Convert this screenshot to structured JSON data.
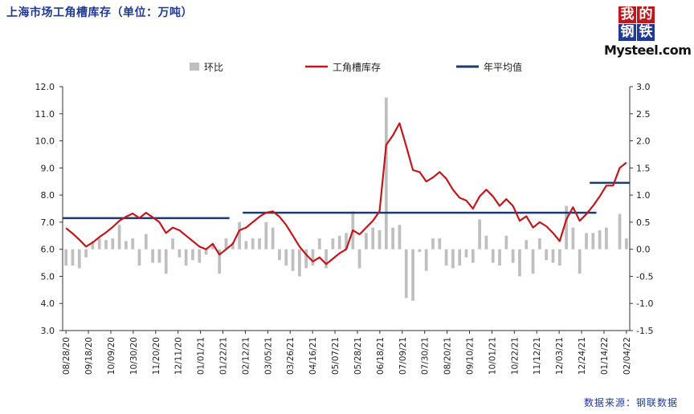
{
  "header": {
    "title": "上海市场工角槽库存（单位：万吨）",
    "logo_cn": [
      "我",
      "的",
      "钢",
      "铁"
    ],
    "logo_en": "Mysteel.com"
  },
  "footer": {
    "source": "数据来源：钢联数据"
  },
  "colors": {
    "bar": "#bfbfbf",
    "inventory": "#c0171c",
    "average": "#1f3a6e"
  },
  "chart_data": {
    "type": "bar",
    "title": "上海市场工角槽库存（单位：万吨）",
    "legend": {
      "placement": "top",
      "entries": [
        "环比",
        "工角槽库存",
        "年平均值"
      ]
    },
    "y_left": {
      "min": 3.0,
      "max": 12.0,
      "step": 1.0,
      "ticks": [
        "3.0",
        "4.0",
        "5.0",
        "6.0",
        "7.0",
        "8.0",
        "9.0",
        "10.0",
        "11.0",
        "12.0"
      ]
    },
    "y_right": {
      "min": -1.5,
      "max": 3.0,
      "step": 0.5,
      "ticks": [
        "-1.5",
        "-1.0",
        "-0.5",
        "0.0",
        "0.5",
        "1.0",
        "1.5",
        "2.0",
        "2.5",
        "3.0"
      ]
    },
    "x_tick_labels": [
      "08/28/20",
      "09/18/20",
      "10/09/20",
      "10/30/20",
      "11/20/20",
      "12/11/20",
      "01/01/21",
      "01/22/21",
      "02/12/21",
      "03/05/21",
      "03/26/21",
      "04/16/21",
      "05/07/21",
      "05/28/21",
      "06/18/21",
      "07/09/21",
      "07/30/21",
      "08/20/21",
      "09/10/21",
      "10/01/21",
      "10/22/21",
      "11/12/21",
      "12/03/21",
      "12/24/21",
      "01/14/22",
      "02/04/22"
    ],
    "inventory": [
      6.78,
      6.58,
      6.35,
      6.1,
      6.25,
      6.45,
      6.62,
      6.82,
      7.05,
      7.2,
      7.32,
      7.15,
      7.35,
      7.18,
      7.0,
      6.6,
      6.8,
      6.7,
      6.5,
      6.3,
      6.1,
      6.0,
      6.2,
      5.8,
      6.0,
      6.2,
      6.7,
      6.8,
      7.0,
      7.2,
      7.35,
      7.4,
      7.2,
      6.9,
      6.5,
      6.1,
      5.8,
      5.55,
      5.7,
      5.45,
      5.65,
      5.85,
      6.0,
      6.7,
      6.55,
      6.8,
      7.05,
      7.4,
      9.85,
      10.2,
      10.65,
      9.8,
      8.92,
      8.85,
      8.5,
      8.65,
      8.85,
      8.6,
      8.2,
      7.9,
      7.8,
      7.5,
      7.95,
      8.2,
      7.95,
      7.6,
      7.85,
      7.6,
      7.05,
      7.22,
      6.8,
      7.0,
      6.85,
      6.6,
      6.3,
      7.1,
      7.55,
      7.05,
      7.3,
      7.6,
      7.95,
      8.35,
      8.35,
      9.0,
      9.2
    ],
    "qoq": [
      -0.3,
      -0.3,
      -0.35,
      -0.15,
      0.15,
      0.2,
      0.17,
      0.2,
      0.45,
      0.15,
      0.2,
      -0.3,
      0.28,
      -0.25,
      -0.25,
      -0.45,
      0.2,
      -0.15,
      -0.3,
      -0.2,
      -0.25,
      -0.1,
      0.1,
      -0.45,
      0.2,
      0.12,
      0.5,
      0.15,
      0.2,
      0.2,
      0.5,
      0.4,
      -0.2,
      -0.3,
      -0.4,
      -0.5,
      -0.35,
      -0.3,
      0.2,
      -0.35,
      0.2,
      0.25,
      0.3,
      0.7,
      -0.35,
      0.3,
      0.4,
      0.35,
      2.8,
      0.4,
      0.45,
      -0.9,
      -0.95,
      -0.05,
      -0.4,
      0.2,
      0.2,
      -0.3,
      -0.35,
      -0.3,
      -0.15,
      -0.25,
      0.55,
      0.25,
      -0.25,
      -0.3,
      0.25,
      -0.25,
      -0.5,
      0.17,
      -0.45,
      0.2,
      -0.2,
      -0.25,
      -0.3,
      0.8,
      0.4,
      -0.45,
      0.3,
      0.3,
      0.35,
      0.4,
      0.0,
      0.65,
      0.2
    ],
    "average_segments": [
      {
        "start_index": 0,
        "end_index": 24,
        "value": 7.15
      },
      {
        "start_index": 27,
        "end_index": 79,
        "value": 7.35
      },
      {
        "start_index": 79,
        "end_index": 84,
        "value": 8.45
      }
    ]
  }
}
